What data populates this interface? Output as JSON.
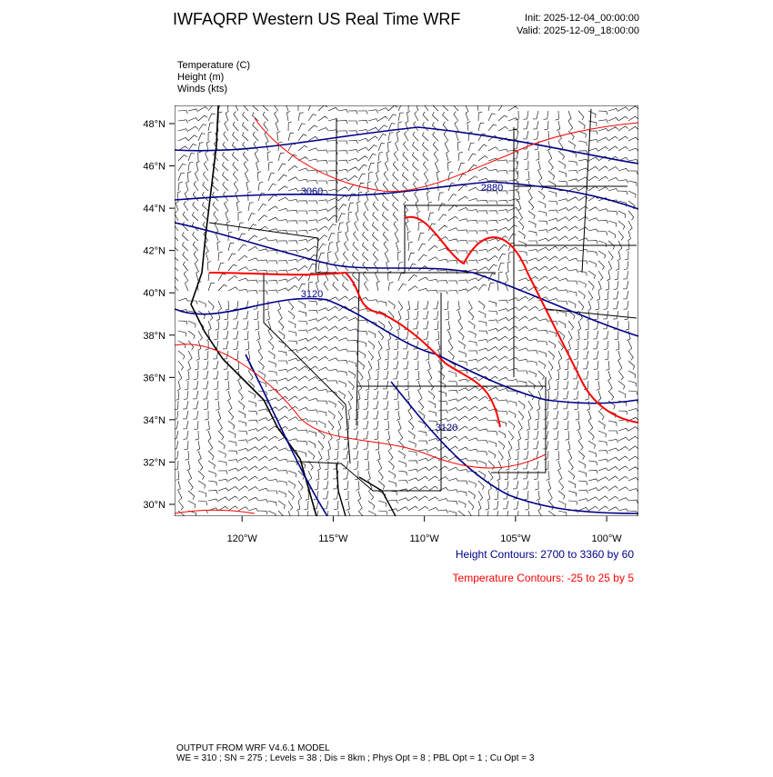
{
  "header": {
    "title": "IWFAQRP Western US Real Time WRF",
    "init": "Init: 2025-12-04_00:00:00",
    "valid": "Valid: 2025-12-09_18:00:00"
  },
  "fields": [
    "Temperature   (C)",
    "Height   (m)",
    "Winds   (kts)"
  ],
  "map": {
    "latlim": [
      29.44,
      48.86
    ],
    "lonlim": [
      -123.7,
      -98.26
    ],
    "lat_ticks": [
      {
        "value": 48,
        "label": "48°N"
      },
      {
        "value": 46,
        "label": "46°N"
      },
      {
        "value": 44,
        "label": "44°N"
      },
      {
        "value": 42,
        "label": "42°N"
      },
      {
        "value": 40,
        "label": "40°N"
      },
      {
        "value": 38,
        "label": "38°N"
      },
      {
        "value": 36,
        "label": "36°N"
      },
      {
        "value": 34,
        "label": "34°N"
      },
      {
        "value": 32,
        "label": "32°N"
      },
      {
        "value": 30,
        "label": "30°N"
      }
    ],
    "lon_ticks": [
      {
        "value": -120,
        "label": "120°W"
      },
      {
        "value": -115,
        "label": "115°W"
      },
      {
        "value": -110,
        "label": "110°W"
      },
      {
        "value": -105,
        "label": "105°W"
      },
      {
        "value": -100,
        "label": "100°W"
      }
    ],
    "contour_labels": [
      "3060",
      "2880",
      "3120",
      "3120"
    ]
  },
  "legend": {
    "height": "Height Contours: 2700 to 3360 by 60",
    "temperature": "Temperature Contours: -25 to 25 by 5"
  },
  "footer": {
    "line1": "OUTPUT FROM WRF V4.6.1 MODEL",
    "line2": "WE = 310 ; SN = 275 ; Levels = 38 ; Dis = 8km ; Phys Opt = 8 ; PBL Opt = 1 ; Cu Opt = 3"
  }
}
